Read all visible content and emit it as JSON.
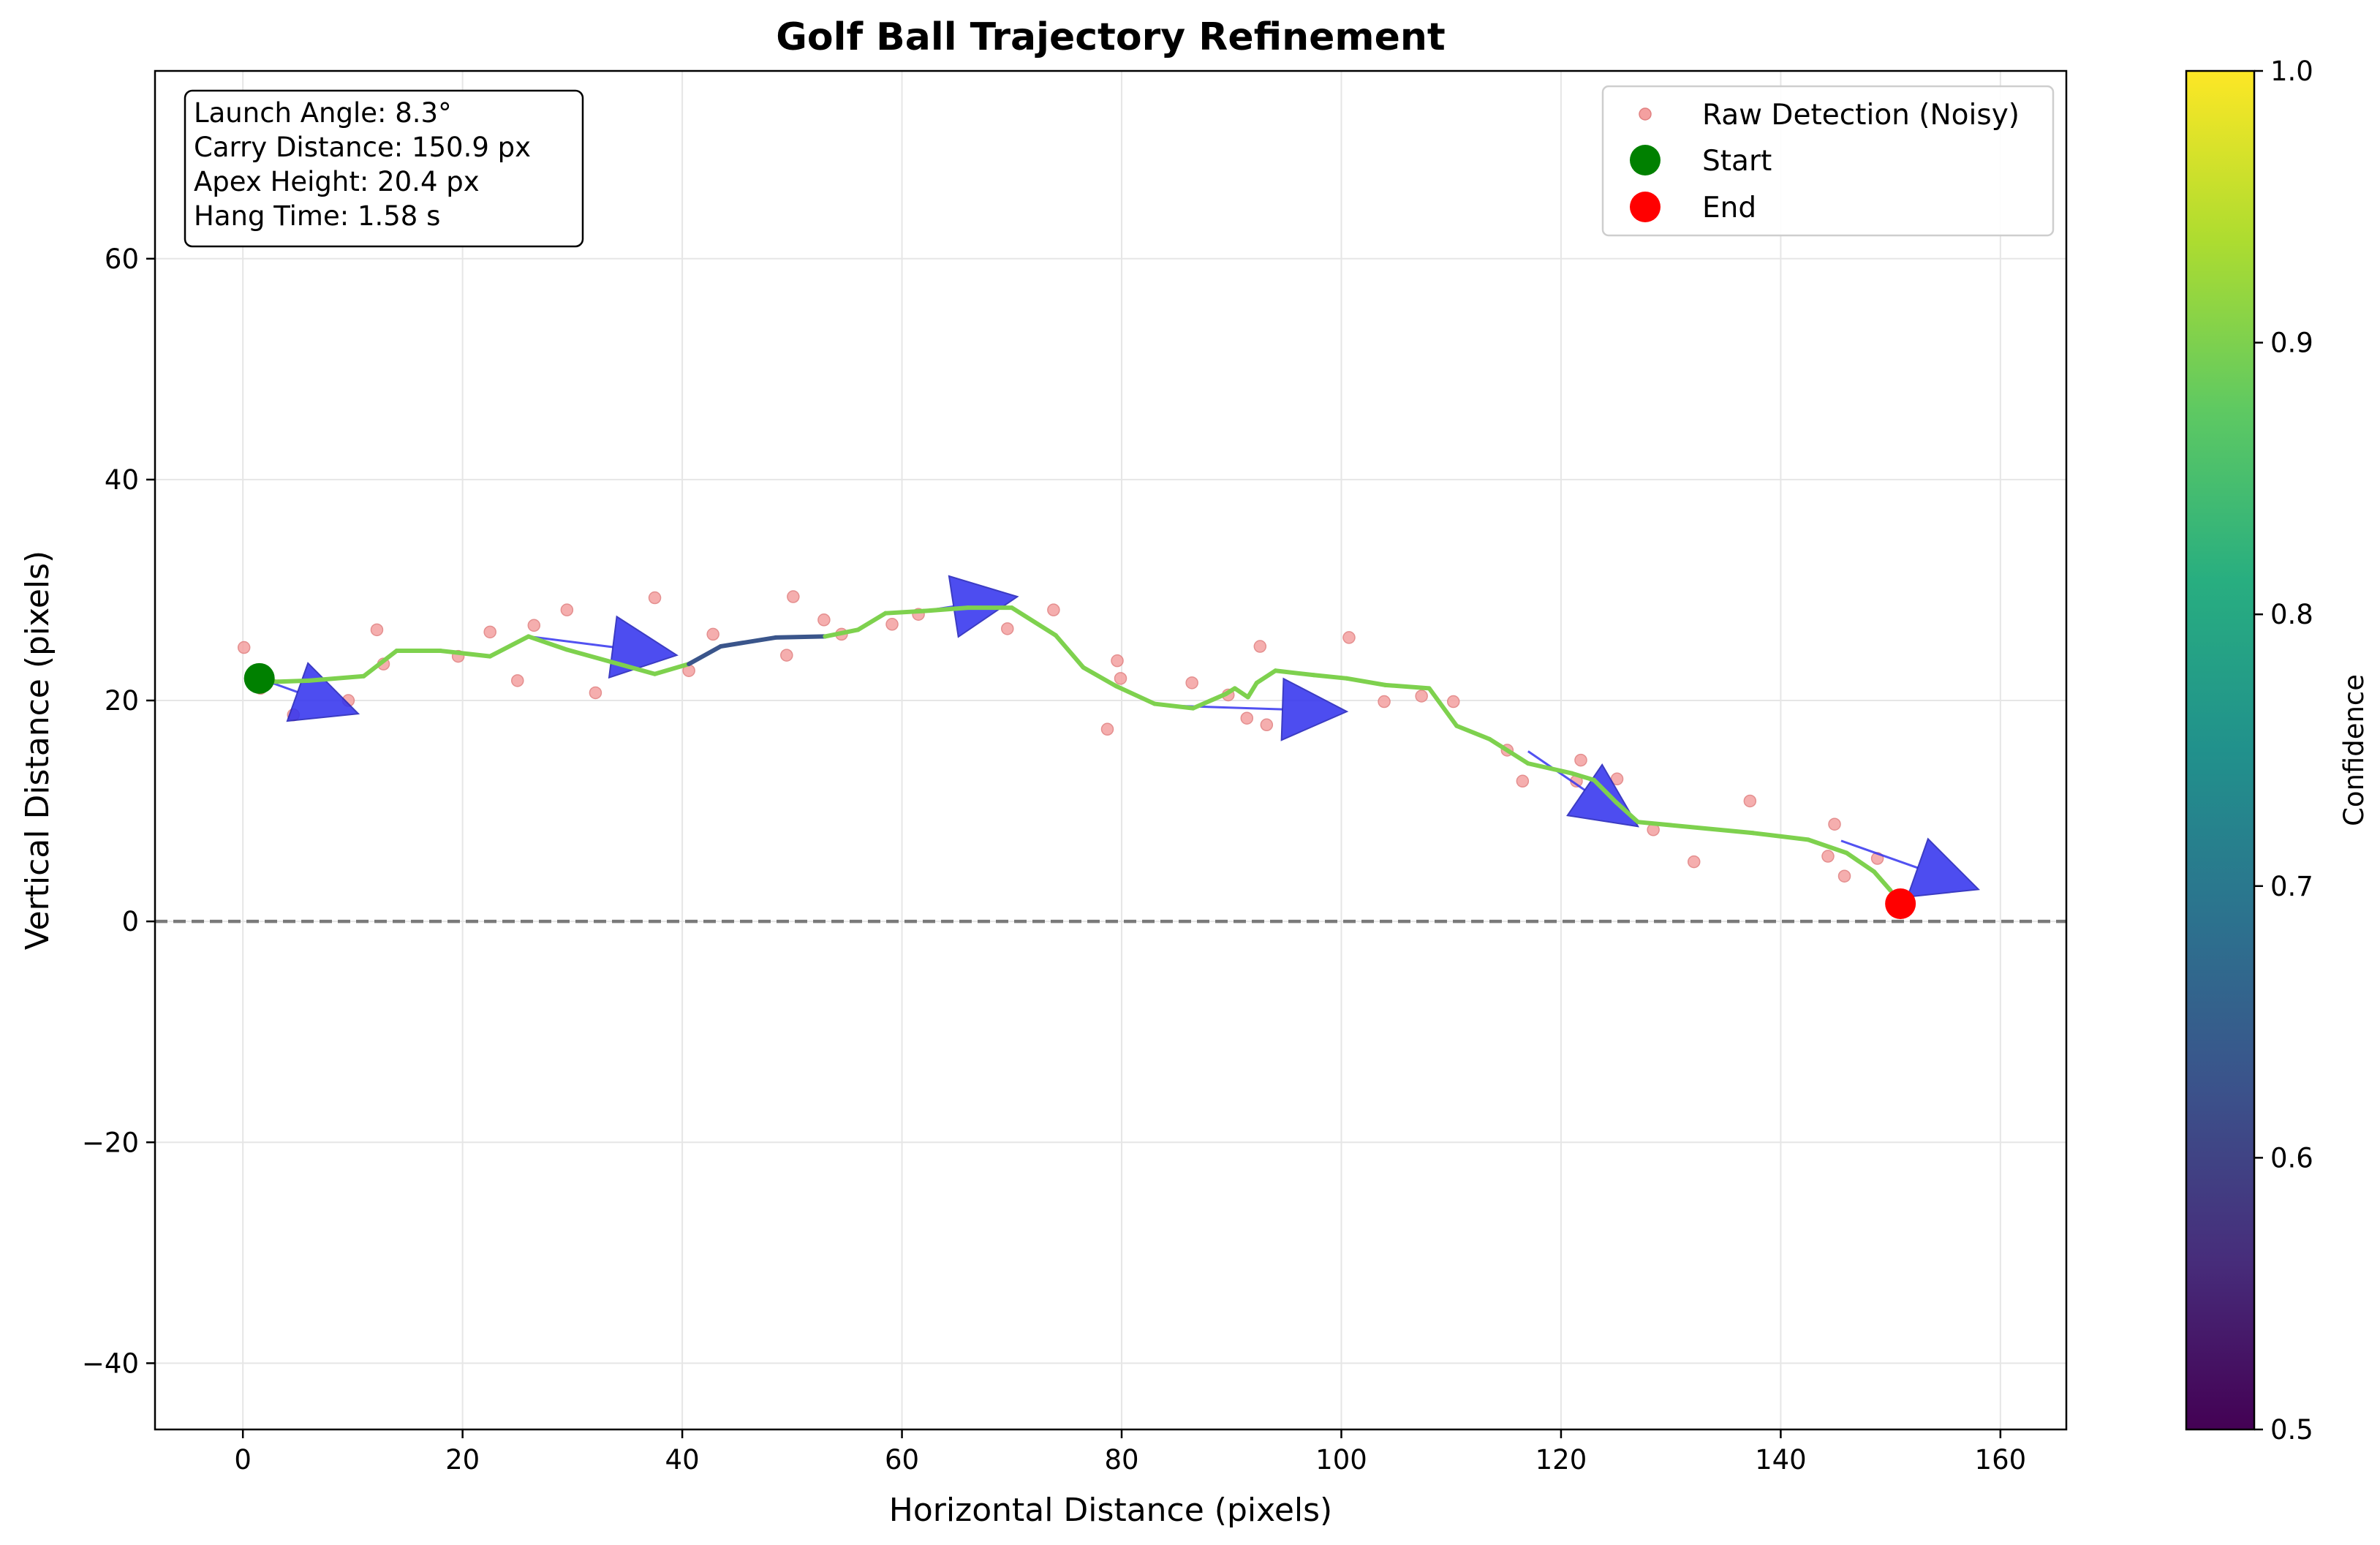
{
  "chart_data": {
    "type": "scatter",
    "title": "Golf Ball Trajectory Refinement",
    "xlabel": "Horizontal Distance (pixels)",
    "ylabel": "Vertical Distance (pixels)",
    "xlim": [
      -8,
      166
    ],
    "ylim": [
      -46,
      77
    ],
    "xticks": [
      0,
      20,
      40,
      60,
      80,
      100,
      120,
      140,
      160
    ],
    "yticks": [
      -40,
      -20,
      0,
      20,
      40,
      60
    ],
    "grid": true,
    "reference_line": {
      "y": 0,
      "style": "dashed",
      "color": "#7a7a7a"
    },
    "info_box": {
      "position": "top-left",
      "lines": [
        "Launch Angle: 8.3°",
        "Carry Distance: 150.9 px",
        "Apex Height: 20.4 px",
        "Hang Time: 1.58 s"
      ]
    },
    "legend": {
      "position": "top-right",
      "entries": [
        {
          "label": "Raw Detection (Noisy)",
          "marker": "small-circle",
          "color": "#f4a0a0"
        },
        {
          "label": "Start",
          "marker": "large-circle",
          "color": "#008000"
        },
        {
          "label": "End",
          "marker": "large-circle",
          "color": "#ff0000"
        }
      ]
    },
    "series": [
      {
        "name": "Raw Detection (Noisy)",
        "kind": "points",
        "color": "#f4a0a0",
        "points": [
          [
            0.1,
            24.8
          ],
          [
            1.6,
            21.1
          ],
          [
            4.6,
            18.7
          ],
          [
            9.6,
            20.0
          ],
          [
            12.2,
            26.4
          ],
          [
            12.8,
            23.3
          ],
          [
            19.6,
            24.0
          ],
          [
            22.5,
            26.2
          ],
          [
            25.0,
            21.8
          ],
          [
            26.5,
            26.8
          ],
          [
            29.5,
            28.2
          ],
          [
            32.1,
            20.7
          ],
          [
            37.5,
            29.3
          ],
          [
            40.6,
            22.7
          ],
          [
            42.8,
            26.0
          ],
          [
            49.5,
            24.1
          ],
          [
            50.1,
            29.4
          ],
          [
            52.9,
            27.3
          ],
          [
            54.5,
            26.0
          ],
          [
            59.1,
            26.9
          ],
          [
            61.5,
            27.8
          ],
          [
            69.6,
            26.5
          ],
          [
            73.8,
            28.2
          ],
          [
            78.7,
            17.4
          ],
          [
            79.6,
            23.6
          ],
          [
            79.9,
            22.0
          ],
          [
            86.4,
            21.6
          ],
          [
            89.7,
            20.5
          ],
          [
            91.4,
            18.4
          ],
          [
            92.6,
            24.9
          ],
          [
            93.2,
            17.8
          ],
          [
            100.7,
            25.7
          ],
          [
            103.9,
            19.9
          ],
          [
            107.3,
            20.4
          ],
          [
            110.2,
            19.9
          ],
          [
            115.1,
            15.5
          ],
          [
            116.5,
            12.7
          ],
          [
            121.4,
            12.7
          ],
          [
            121.8,
            14.6
          ],
          [
            125.1,
            12.9
          ],
          [
            128.4,
            8.3
          ],
          [
            132.1,
            5.4
          ],
          [
            137.2,
            10.9
          ],
          [
            144.3,
            5.9
          ],
          [
            144.9,
            8.8
          ],
          [
            145.8,
            4.1
          ],
          [
            148.8,
            5.7
          ],
          [
            151.5,
            1.3
          ]
        ]
      },
      {
        "name": "",
        "kind": "line",
        "color_map": "viridis",
        "points": [
          [
            1.5,
            22.0
          ],
          [
            3.0,
            21.7
          ],
          [
            6.0,
            21.8
          ],
          [
            11.0,
            22.2
          ],
          [
            14.0,
            24.5
          ],
          [
            18.0,
            24.5
          ],
          [
            22.5,
            24.0
          ],
          [
            26.0,
            25.8
          ],
          [
            29.5,
            24.6
          ],
          [
            33.5,
            23.5
          ],
          [
            37.5,
            22.4
          ],
          [
            40.6,
            23.3
          ],
          [
            43.5,
            24.9
          ],
          [
            48.5,
            25.7
          ],
          [
            53.0,
            25.8
          ],
          [
            56.0,
            26.4
          ],
          [
            58.5,
            27.9
          ],
          [
            62.0,
            28.1
          ],
          [
            66.0,
            28.4
          ],
          [
            70.0,
            28.4
          ],
          [
            74.0,
            25.9
          ],
          [
            76.5,
            23.0
          ],
          [
            79.5,
            21.3
          ],
          [
            83.0,
            19.7
          ],
          [
            86.5,
            19.3
          ],
          [
            89.5,
            20.6
          ],
          [
            90.3,
            21.1
          ],
          [
            91.5,
            20.3
          ],
          [
            92.3,
            21.6
          ],
          [
            94.0,
            22.7
          ],
          [
            97.5,
            22.3
          ],
          [
            100.5,
            22.0
          ],
          [
            104.0,
            21.4
          ],
          [
            108.0,
            21.1
          ],
          [
            110.5,
            17.7
          ],
          [
            113.5,
            16.5
          ],
          [
            117.0,
            14.3
          ],
          [
            121.0,
            13.4
          ],
          [
            123.0,
            12.8
          ],
          [
            125.0,
            10.8
          ],
          [
            127.0,
            9.0
          ],
          [
            137.5,
            8.0
          ],
          [
            142.5,
            7.4
          ],
          [
            146.0,
            6.2
          ],
          [
            148.5,
            4.5
          ],
          [
            150.0,
            2.8
          ]
        ],
        "confidence": [
          0.9,
          0.9,
          0.9,
          0.9,
          0.9,
          0.9,
          0.9,
          0.9,
          0.9,
          0.9,
          0.9,
          0.63,
          0.63,
          0.63,
          0.9,
          0.9,
          0.9,
          0.9,
          0.9,
          0.9,
          0.9,
          0.9,
          0.9,
          0.9,
          0.9,
          0.9,
          0.9,
          0.9,
          0.9,
          0.9,
          0.9,
          0.9,
          0.9,
          0.9,
          0.9,
          0.9,
          0.9,
          0.9,
          0.9,
          0.9,
          0.9,
          0.9,
          0.9,
          0.9,
          0.9
        ]
      },
      {
        "name": "Start",
        "kind": "marker",
        "color": "#008000",
        "points": [
          [
            1.5,
            22.0
          ]
        ]
      },
      {
        "name": "End",
        "kind": "marker",
        "color": "#ff0000",
        "points": [
          [
            150.9,
            1.6
          ]
        ]
      },
      {
        "name": "",
        "kind": "velocity-arrows",
        "color": "#3535ef",
        "segments": [
          [
            1.5,
            22.0,
            10.5,
            18.8
          ],
          [
            26.0,
            25.8,
            39.5,
            24.1
          ],
          [
            62.0,
            28.1,
            70.5,
            29.4
          ],
          [
            85.5,
            19.5,
            100.5,
            19.0
          ],
          [
            117.0,
            15.4,
            127.0,
            8.6
          ],
          [
            145.5,
            7.3,
            158.0,
            2.9
          ]
        ]
      }
    ],
    "colorbar": {
      "label": "Confidence",
      "colormap": "viridis",
      "range": [
        0.5,
        1.0
      ],
      "ticks": [
        "0.5",
        "0.6",
        "0.7",
        "0.8",
        "0.9",
        "1.0"
      ]
    }
  }
}
